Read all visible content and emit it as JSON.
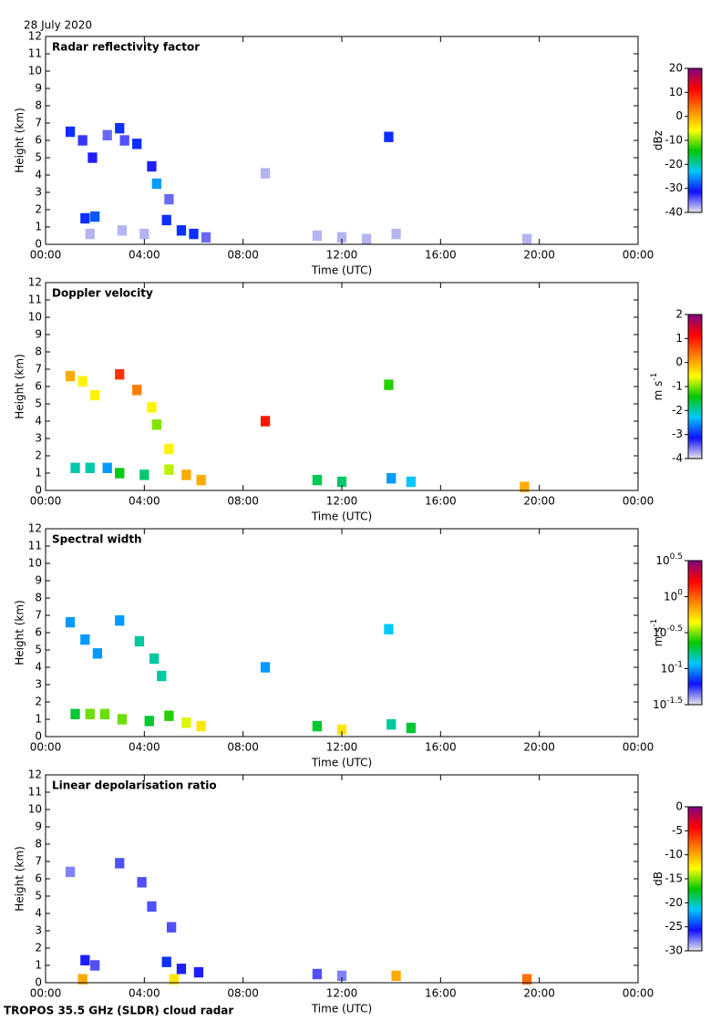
{
  "header": "28 July 2020",
  "footer": "TROPOS 35.5 GHz (SLDR) cloud radar",
  "chart_data": [
    {
      "type": "heatmap",
      "title": "Radar reflectivity factor",
      "x_label": "Time (UTC)",
      "y_label": "Height (km)",
      "xlim": [
        0,
        24
      ],
      "xticks": [
        {
          "value": 0,
          "label": "00:00"
        },
        {
          "value": 4,
          "label": "04:00"
        },
        {
          "value": 8,
          "label": "08:00"
        },
        {
          "value": 12,
          "label": "12:00"
        },
        {
          "value": 16,
          "label": "16:00"
        },
        {
          "value": 20,
          "label": "20:00"
        },
        {
          "value": 24,
          "label": "00:00"
        }
      ],
      "ylim": [
        0,
        12
      ],
      "yticks": [
        0,
        1,
        2,
        3,
        4,
        5,
        6,
        7,
        8,
        9,
        10,
        11,
        12
      ],
      "colormap": [
        "#e6e6ee",
        "#1010ff",
        "#00c8ff",
        "#00c800",
        "#ffff00",
        "#ff8000",
        "#ff0000",
        "#800080"
      ],
      "colorbar": {
        "label": "dBz",
        "lim": [
          -40,
          20
        ],
        "ticks": [
          -40,
          -30,
          -20,
          -10,
          0,
          10,
          20
        ]
      },
      "x": [
        1.0,
        1.5,
        1.9,
        2.5,
        3.0,
        3.2,
        3.7,
        4.3,
        4.5,
        5.0,
        8.9,
        13.9,
        1.6,
        1.8,
        2.0,
        3.1,
        4.0,
        4.9,
        5.5,
        6.0,
        6.5,
        11.0,
        12.0,
        13.0,
        14.2,
        19.5
      ],
      "y": [
        6.5,
        6.0,
        5.0,
        6.3,
        6.7,
        6.0,
        5.8,
        4.5,
        3.5,
        2.6,
        4.1,
        6.2,
        1.5,
        0.6,
        1.6,
        0.8,
        0.6,
        1.4,
        0.8,
        0.6,
        0.4,
        0.5,
        0.4,
        0.3,
        0.6,
        0.3
      ],
      "values": [
        -30,
        -33,
        -32,
        -35,
        -30,
        -34,
        -30,
        -32,
        -25,
        -35,
        -38,
        -30,
        -30,
        -38,
        -28,
        -38,
        -38,
        -30,
        -30,
        -30,
        -35,
        -38,
        -38,
        -38,
        -38,
        -38
      ]
    },
    {
      "type": "heatmap",
      "title": "Doppler velocity",
      "x_label": "Time (UTC)",
      "y_label": "Height (km)",
      "xlim": [
        0,
        24
      ],
      "xticks": [
        {
          "value": 0,
          "label": "00:00"
        },
        {
          "value": 4,
          "label": "04:00"
        },
        {
          "value": 8,
          "label": "08:00"
        },
        {
          "value": 12,
          "label": "12:00"
        },
        {
          "value": 16,
          "label": "16:00"
        },
        {
          "value": 20,
          "label": "20:00"
        },
        {
          "value": 24,
          "label": "00:00"
        }
      ],
      "ylim": [
        0,
        12
      ],
      "yticks": [
        0,
        1,
        2,
        3,
        4,
        5,
        6,
        7,
        8,
        9,
        10,
        11,
        12
      ],
      "colormap": [
        "#e6e6ee",
        "#1010ff",
        "#00c8ff",
        "#00c800",
        "#ffff00",
        "#ff8000",
        "#ff0000",
        "#800080"
      ],
      "colorbar": {
        "label": "m s",
        "label_sup": "-1",
        "lim": [
          -4,
          2
        ],
        "ticks": [
          -4,
          -3,
          -2,
          -1,
          0,
          1,
          2
        ]
      },
      "x": [
        1.0,
        1.5,
        2.0,
        3.0,
        3.7,
        4.3,
        4.5,
        5.0,
        8.9,
        13.9,
        1.2,
        1.8,
        2.5,
        3.0,
        4.0,
        5.0,
        5.7,
        6.3,
        11.0,
        12.0,
        14.0,
        14.8,
        19.4
      ],
      "y": [
        6.6,
        6.3,
        5.5,
        6.7,
        5.8,
        4.8,
        3.8,
        2.4,
        4.0,
        6.1,
        1.3,
        1.3,
        1.3,
        1.0,
        0.9,
        1.2,
        0.9,
        0.6,
        0.6,
        0.5,
        0.7,
        0.5,
        0.2
      ],
      "values": [
        0,
        -0.5,
        -0.5,
        0.8,
        0.3,
        -0.5,
        -1,
        -0.5,
        1,
        -1.3,
        -2,
        -2,
        -2.5,
        -1.5,
        -1.8,
        -0.8,
        0,
        0,
        -1.7,
        -1.8,
        -2.5,
        -2.3,
        0
      ]
    },
    {
      "type": "heatmap",
      "title": "Spectral width",
      "x_label": "Time (UTC)",
      "y_label": "Height (km)",
      "xlim": [
        0,
        24
      ],
      "xticks": [
        {
          "value": 0,
          "label": "00:00"
        },
        {
          "value": 4,
          "label": "04:00"
        },
        {
          "value": 8,
          "label": "08:00"
        },
        {
          "value": 12,
          "label": "12:00"
        },
        {
          "value": 16,
          "label": "16:00"
        },
        {
          "value": 20,
          "label": "20:00"
        },
        {
          "value": 24,
          "label": "00:00"
        }
      ],
      "ylim": [
        0,
        12
      ],
      "yticks": [
        0,
        1,
        2,
        3,
        4,
        5,
        6,
        7,
        8,
        9,
        10,
        11,
        12
      ],
      "colormap": [
        "#e6e6ee",
        "#1010ff",
        "#00c8ff",
        "#00c800",
        "#ffff00",
        "#ff8000",
        "#ff0000",
        "#800080"
      ],
      "colorbar": {
        "label": "m s",
        "label_sup": "-1",
        "log": true,
        "lim": [
          0.0316,
          3.162
        ],
        "ticks": [
          {
            "value": 0.0316,
            "label": "10",
            "exponent": "-1.5"
          },
          {
            "value": 0.1,
            "label": "10",
            "exponent": "-1"
          },
          {
            "value": 0.3162,
            "label": "10",
            "exponent": "-0.5"
          },
          {
            "value": 1,
            "label": "10",
            "exponent": "0"
          },
          {
            "value": 3.162,
            "label": "10",
            "exponent": "0.5"
          }
        ]
      },
      "x": [
        1.0,
        1.6,
        2.1,
        3.0,
        3.8,
        4.4,
        4.7,
        8.9,
        13.9,
        1.2,
        1.8,
        2.4,
        3.1,
        4.2,
        5.0,
        5.7,
        6.3,
        11.0,
        12.0,
        14.0,
        14.8
      ],
      "y": [
        6.6,
        5.6,
        4.8,
        6.7,
        5.5,
        4.5,
        3.5,
        4.0,
        6.2,
        1.3,
        1.3,
        1.3,
        1.0,
        0.9,
        1.2,
        0.8,
        0.6,
        0.6,
        0.4,
        0.7,
        0.5
      ],
      "values": [
        0.1,
        0.1,
        0.1,
        0.1,
        0.15,
        0.15,
        0.15,
        0.1,
        0.12,
        0.2,
        0.3,
        0.3,
        0.3,
        0.2,
        0.25,
        0.4,
        0.5,
        0.2,
        0.5,
        0.15,
        0.2
      ]
    },
    {
      "type": "heatmap",
      "title": "Linear depolarisation ratio",
      "x_label": "Time (UTC)",
      "y_label": "Height (km)",
      "xlim": [
        0,
        24
      ],
      "xticks": [
        {
          "value": 0,
          "label": "00:00"
        },
        {
          "value": 4,
          "label": "04:00"
        },
        {
          "value": 8,
          "label": "08:00"
        },
        {
          "value": 12,
          "label": "12:00"
        },
        {
          "value": 16,
          "label": "16:00"
        },
        {
          "value": 20,
          "label": "20:00"
        },
        {
          "value": 24,
          "label": "00:00"
        }
      ],
      "ylim": [
        0,
        12
      ],
      "yticks": [
        0,
        1,
        2,
        3,
        4,
        5,
        6,
        7,
        8,
        9,
        10,
        11,
        12
      ],
      "colormap": [
        "#e6e6ee",
        "#1010ff",
        "#00c8ff",
        "#00c800",
        "#ffff00",
        "#ff8000",
        "#ff0000",
        "#800080"
      ],
      "colorbar": {
        "label": "dB",
        "lim": [
          -30,
          0
        ],
        "ticks": [
          -30,
          -25,
          -20,
          -15,
          -10,
          -5,
          0
        ]
      },
      "x": [
        1.0,
        3.0,
        3.9,
        4.3,
        5.1,
        1.6,
        2.0,
        4.9,
        5.5,
        6.2,
        11.0,
        12.0,
        1.5,
        5.2,
        14.2,
        19.5
      ],
      "y": [
        6.4,
        6.9,
        5.8,
        4.4,
        3.2,
        1.3,
        1.0,
        1.2,
        0.8,
        0.6,
        0.5,
        0.4,
        0.2,
        0.2,
        0.4,
        0.2
      ],
      "values": [
        -28,
        -27,
        -27,
        -27,
        -27,
        -26,
        -27,
        -25,
        -26,
        -26,
        -27,
        -28,
        -10,
        -12,
        -10,
        -8
      ]
    }
  ]
}
